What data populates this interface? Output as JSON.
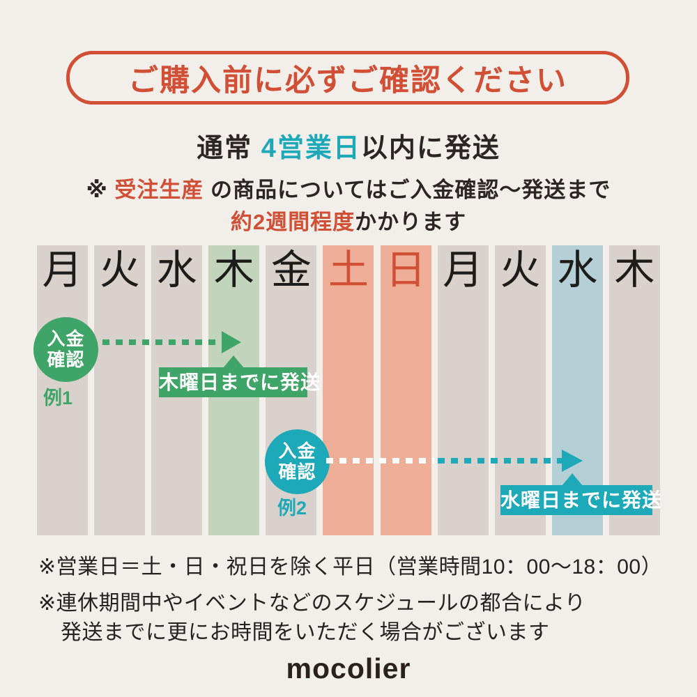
{
  "colors": {
    "background": "#f2efeb",
    "red_accent": "#d14f35",
    "teal_accent": "#1da9b8",
    "green_accent": "#3fa467",
    "column_beige": "#d9d2cc",
    "column_green": "#c3d4bd",
    "column_salmon": "#efae97",
    "column_blue": "#b4cfd6",
    "text_dark": "#2b2623"
  },
  "header": {
    "title": "ご購入前に必ずご確認ください"
  },
  "lead": {
    "prefix": "通常 ",
    "highlight": "4営業日",
    "suffix": "以内に発送"
  },
  "made_to_order_note": {
    "line1_prefix": "※ ",
    "line1_highlight": "受注生産",
    "line1_rest": " の商品についてはご入金確認〜発送まで",
    "line2_highlight": "約2週間程度",
    "line2_rest": "かかります"
  },
  "calendar": {
    "days": [
      {
        "label": "月",
        "column": "beige",
        "weekend": false
      },
      {
        "label": "火",
        "column": "beige",
        "weekend": false
      },
      {
        "label": "水",
        "column": "beige",
        "weekend": false
      },
      {
        "label": "木",
        "column": "green",
        "weekend": false
      },
      {
        "label": "金",
        "column": "beige",
        "weekend": false
      },
      {
        "label": "土",
        "column": "salmon",
        "weekend": true
      },
      {
        "label": "日",
        "column": "salmon",
        "weekend": true
      },
      {
        "label": "月",
        "column": "beige",
        "weekend": false
      },
      {
        "label": "火",
        "column": "beige",
        "weekend": false
      },
      {
        "label": "水",
        "column": "blue",
        "weekend": false
      },
      {
        "label": "木",
        "column": "beige",
        "weekend": false
      }
    ]
  },
  "example1": {
    "badge_line1": "入金",
    "badge_line2": "確認",
    "caption": "例1",
    "label": "木曜日までに発送"
  },
  "example2": {
    "badge_line1": "入金",
    "badge_line2": "確認",
    "caption": "例2",
    "label": "水曜日までに発送"
  },
  "footnotes": {
    "line1": "※営業日＝土・日・祝日を除く平日（営業時間10：00〜18：00）",
    "line2": "※連休期間中やイベントなどのスケジュールの都合により",
    "line3": "発送までに更にお時間をいただく場合がございます"
  },
  "logo": {
    "text": "mocolier"
  }
}
